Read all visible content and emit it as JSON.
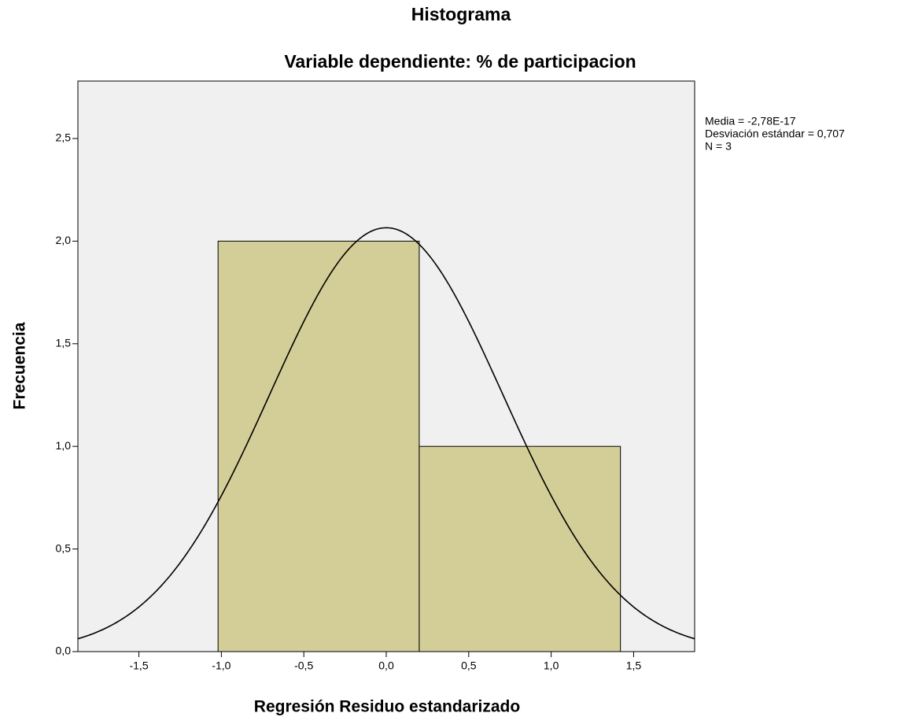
{
  "chart_data": {
    "type": "histogram",
    "title": "Histograma",
    "subtitle": "Variable dependiente: % de participacion",
    "x_label": "Regresión Residuo estandarizado",
    "y_label": "Frecuencia",
    "bins": [
      -1.02,
      0.2,
      1.42
    ],
    "counts": [
      2,
      1
    ],
    "color": "#d3ce97",
    "background": "#f0f0f0",
    "xlim": [
      -1.87,
      1.87
    ],
    "ylim": [
      0,
      2.78
    ],
    "xticks": [
      {
        "value": -1.5,
        "label": "-1,5"
      },
      {
        "value": -1.0,
        "label": "-1,0"
      },
      {
        "value": -0.5,
        "label": "-0,5"
      },
      {
        "value": 0.0,
        "label": "0,0"
      },
      {
        "value": 0.5,
        "label": "0,5"
      },
      {
        "value": 1.0,
        "label": "1,0"
      },
      {
        "value": 1.5,
        "label": "1,5"
      }
    ],
    "yticks": [
      {
        "value": 0.0,
        "label": "0,0"
      },
      {
        "value": 0.5,
        "label": "0,5"
      },
      {
        "value": 1.0,
        "label": "1,0"
      },
      {
        "value": 1.5,
        "label": "1,5"
      },
      {
        "value": 2.0,
        "label": "2,0"
      },
      {
        "value": 2.5,
        "label": "2,5"
      }
    ],
    "legend_stats": [
      {
        "value": -2.78e-17,
        "label": "Media = -2,78E-17"
      },
      {
        "value": 0.707,
        "label": "Desviación estándar = 0,707"
      },
      {
        "value": 3,
        "label": "N = 3"
      }
    ]
  }
}
